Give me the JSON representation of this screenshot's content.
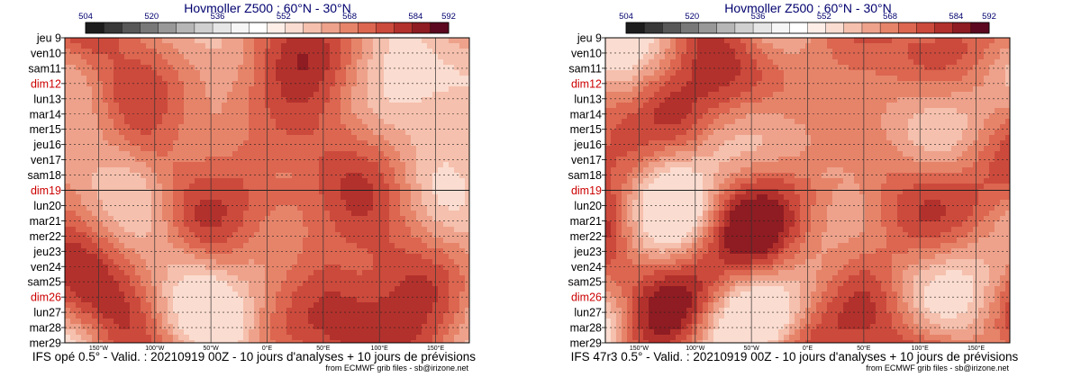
{
  "palette": [
    "#1c1c1c",
    "#383838",
    "#585858",
    "#787878",
    "#989898",
    "#b6b6b6",
    "#d0d0d0",
    "#e6e6e6",
    "#f6f6f6",
    "#ffffff",
    "#fdeee8",
    "#fbdcd0",
    "#f5c0ad",
    "#eea28b",
    "#e6846a",
    "#dc6650",
    "#cc4a3c",
    "#b3312c",
    "#8e1c22",
    "#5c0820"
  ],
  "weekend_color": "#cc0000",
  "chart_data": [
    {
      "type": "heatmap",
      "title": "Hovmoller Z500 : 60°N - 30°N",
      "colorbar_ticks": [
        "504",
        "520",
        "536",
        "552",
        "568",
        "584",
        "592"
      ],
      "colorbar_values": [
        504,
        520,
        536,
        552,
        568,
        584,
        592
      ],
      "x_ticks": [
        "150°W",
        "100°W",
        "50°W",
        "0°E",
        "50°E",
        "100°E",
        "150°E"
      ],
      "x_tick_values": [
        -150,
        -100,
        -50,
        0,
        50,
        100,
        150
      ],
      "xlim": [
        -180,
        180
      ],
      "dates": [
        "jeu 9",
        "ven10",
        "sam11",
        "dim12",
        "lun13",
        "mar14",
        "mer15",
        "jeu16",
        "ven17",
        "sam18",
        "dim19",
        "lun20",
        "mar21",
        "mer22",
        "jeu23",
        "ven24",
        "sam25",
        "dim26",
        "lun27",
        "mar28",
        "mer29"
      ],
      "weekend_dates": [
        "dim12",
        "dim19",
        "dim26"
      ],
      "analysis_end_date": "dim19",
      "caption": "IFS opé 0.5° - Valid. : 20210919 00Z - 10 jours d'analyses + 10 jours de prévisions",
      "credit": "from ECMWF grib files - sb@irizone.net",
      "seed": 7
    },
    {
      "type": "heatmap",
      "title": "Hovmoller Z500 : 60°N - 30°N",
      "colorbar_ticks": [
        "504",
        "520",
        "536",
        "552",
        "568",
        "584",
        "592"
      ],
      "colorbar_values": [
        504,
        520,
        536,
        552,
        568,
        584,
        592
      ],
      "x_ticks": [
        "150°W",
        "100°W",
        "50°W",
        "0°E",
        "50°E",
        "100°E",
        "150°E"
      ],
      "x_tick_values": [
        -150,
        -100,
        -50,
        0,
        50,
        100,
        150
      ],
      "xlim": [
        -180,
        180
      ],
      "dates": [
        "jeu 9",
        "ven10",
        "sam11",
        "dim12",
        "lun13",
        "mar14",
        "mer15",
        "jeu16",
        "ven17",
        "sam18",
        "dim19",
        "lun20",
        "mar21",
        "mer22",
        "jeu23",
        "ven24",
        "sam25",
        "dim26",
        "lun27",
        "mar28",
        "mer29"
      ],
      "weekend_dates": [
        "dim12",
        "dim19",
        "dim26"
      ],
      "analysis_end_date": "dim19",
      "caption": "IFS 47r3 0.5° - Valid. : 20210919 00Z - 10 jours d'analyses + 10 jours de prévisions",
      "credit": "from ECMWF grib files - sb@irizone.net",
      "seed": 13
    }
  ]
}
